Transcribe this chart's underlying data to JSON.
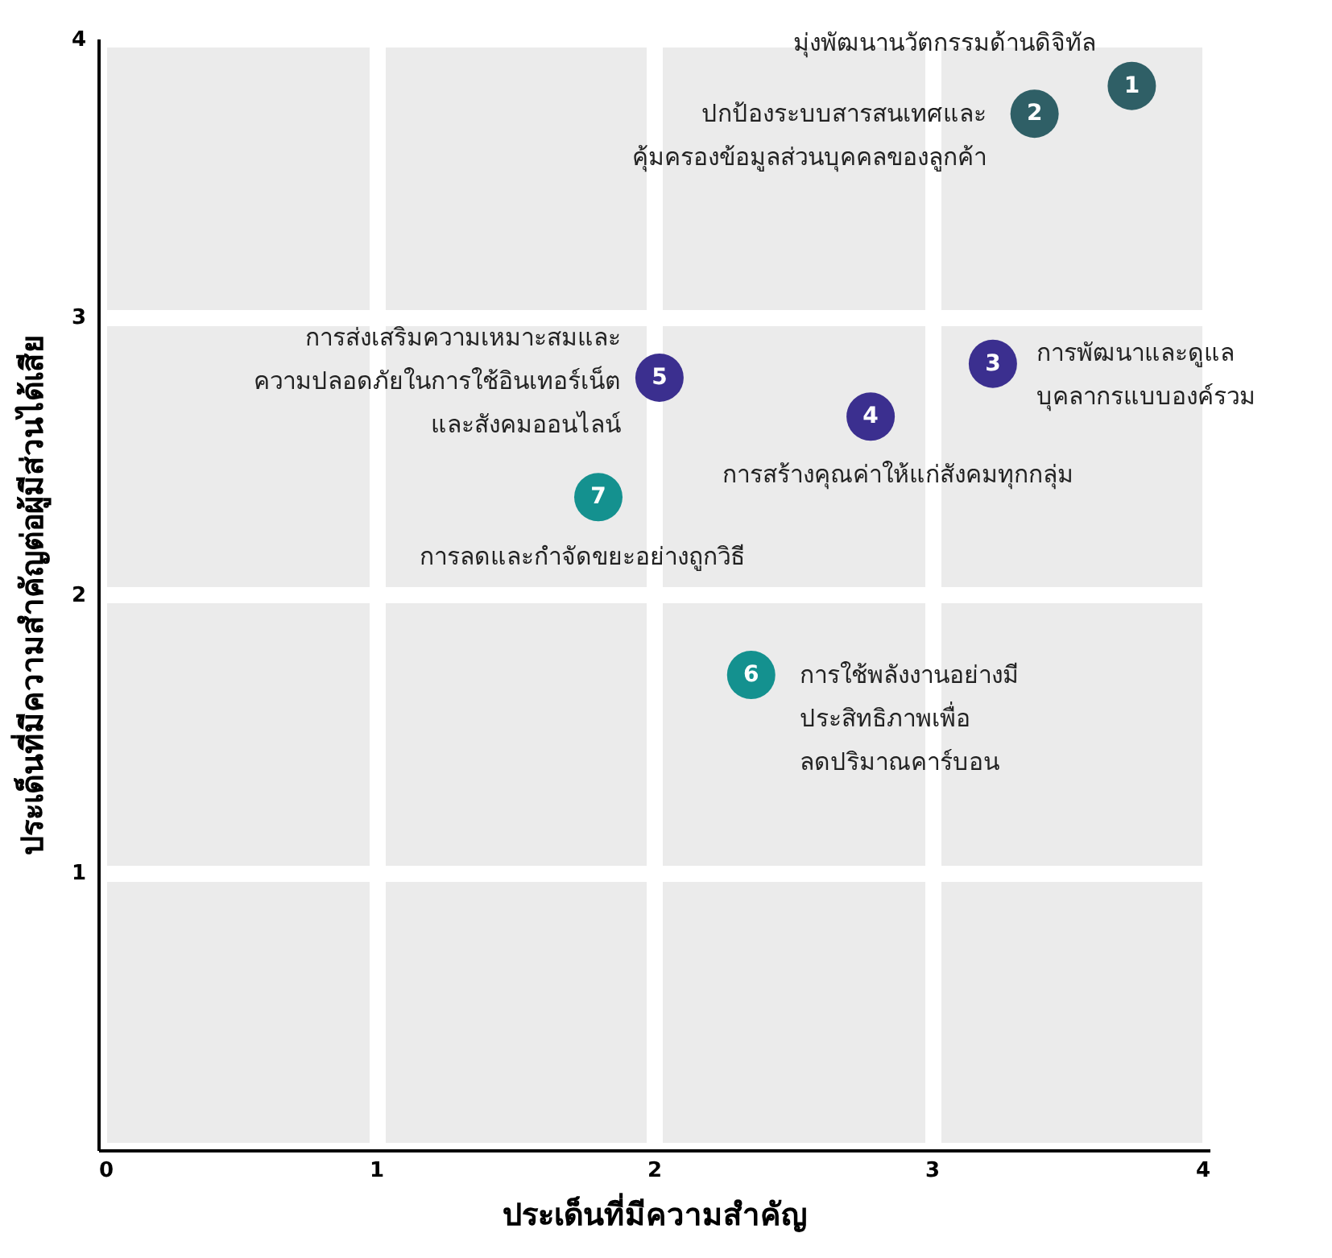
{
  "chart_data": {
    "type": "scatter",
    "xlabel": "ประเด็นที่มีความสำคัญ",
    "ylabel": "ประเด็นที่มีความสำคัญต่อผู้มีส่วนได้เสีย",
    "series": [
      {
        "color": "#2f5f66",
        "x": [
          3.72,
          3.37
        ],
        "values": [
          3.83,
          3.73
        ]
      },
      {
        "color": "#3b2f8f",
        "x": [
          3.22,
          2.78,
          2.02
        ],
        "values": [
          2.83,
          2.64,
          2.78
        ]
      },
      {
        "color": "#14918f",
        "x": [
          2.35,
          1.8
        ],
        "values": [
          1.71,
          2.35
        ]
      }
    ],
    "marker": "circle",
    "xlim": [
      0,
      4
    ],
    "ylim": [
      0,
      4
    ],
    "xticks": [
      0,
      1,
      2,
      3,
      4
    ],
    "yticks": [
      {
        "value": 0,
        "label": null
      },
      1,
      2,
      3,
      4
    ],
    "grid": true,
    "annotations": [
      {
        "text": "1",
        "x": 3.72,
        "y": 3.83
      },
      {
        "text": "2",
        "x": 3.37,
        "y": 3.73
      },
      {
        "text": "3",
        "x": 3.22,
        "y": 2.83
      },
      {
        "text": "4",
        "x": 2.78,
        "y": 2.64
      },
      {
        "text": "5",
        "x": 2.02,
        "y": 2.78
      },
      {
        "text": "6",
        "x": 2.35,
        "y": 1.71
      },
      {
        "text": "7",
        "x": 1.8,
        "y": 2.35
      },
      {
        "text": "มุ่งพัฒนานวัตกรรมด้านดิจิทัล",
        "x": 3.72,
        "y": 3.83
      },
      {
        "text": "ปกป้องระบบสารสนเทศและ\nคุ้มครองข้อมูลส่วนบุคคลของลูกค้า",
        "x": 3.37,
        "y": 3.73
      },
      {
        "text": "การพัฒนาและดูแล\nบุคลากรแบบองค์รวม",
        "x": 3.22,
        "y": 2.83
      },
      {
        "text": "การสร้างคุณค่าให้แก่สังคมทุกกลุ่ม",
        "x": 2.78,
        "y": 2.64
      },
      {
        "text": "การส่งเสริมความเหมาะสมและ\nความปลอดภัยในการใช้อินเทอร์เน็ต\nและสังคมออนไลน์",
        "x": 2.02,
        "y": 2.78
      },
      {
        "text": "การใช้พลังงานอย่างมี\nประสิทธิภาพเพื่อ\nลดปริมาณคาร์บอน",
        "x": 2.35,
        "y": 1.71
      },
      {
        "text": "การลดและกำจัดขยะอย่างถูกวิธี",
        "x": 1.8,
        "y": 2.35
      }
    ]
  }
}
